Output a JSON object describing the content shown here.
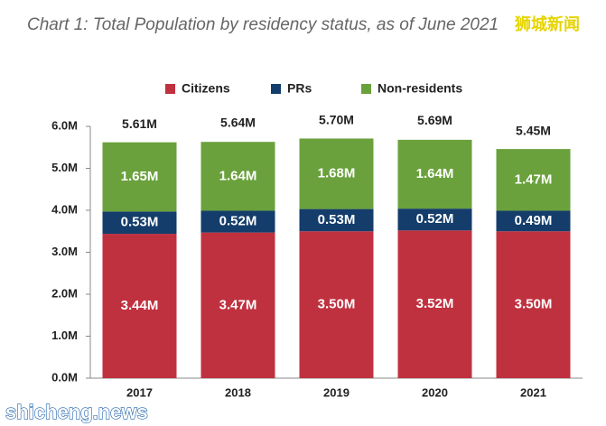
{
  "chart_data": {
    "type": "stacked_bar",
    "title": "Chart 1: Total Population by residency status, as of June 2021",
    "watermark": "狮城新闻",
    "source_mark": "shicheng.news",
    "categories": [
      "2017",
      "2018",
      "2019",
      "2020",
      "2021"
    ],
    "series": [
      {
        "name": "Citizens",
        "color": "#c0313f",
        "values": [
          3.44,
          3.47,
          3.5,
          3.52,
          3.5
        ],
        "value_labels": [
          "3.44M",
          "3.47M",
          "3.50M",
          "3.52M",
          "3.50M"
        ]
      },
      {
        "name": "PRs",
        "color": "#143d6b",
        "values": [
          0.53,
          0.52,
          0.53,
          0.52,
          0.49
        ],
        "value_labels": [
          "0.53M",
          "0.52M",
          "0.53M",
          "0.52M",
          "0.49M"
        ]
      },
      {
        "name": "Non-residents",
        "color": "#6aa13c",
        "values": [
          1.65,
          1.64,
          1.68,
          1.64,
          1.47
        ],
        "value_labels": [
          "1.65M",
          "1.64M",
          "1.68M",
          "1.64M",
          "1.47M"
        ]
      }
    ],
    "totals": {
      "values": [
        5.61,
        5.64,
        5.7,
        5.69,
        5.45
      ],
      "value_labels": [
        "5.61M",
        "5.64M",
        "5.70M",
        "5.69M",
        "5.45M"
      ]
    },
    "ylim": [
      0,
      6
    ],
    "yticks": [
      {
        "value": 0,
        "label": "0.0M"
      },
      {
        "value": 1,
        "label": "1.0M"
      },
      {
        "value": 2,
        "label": "2.0M"
      },
      {
        "value": 3,
        "label": "3.0M"
      },
      {
        "value": 4,
        "label": "4.0M"
      },
      {
        "value": 5,
        "label": "5.0M"
      },
      {
        "value": 6,
        "label": "6.0M"
      }
    ],
    "legend": "top"
  }
}
